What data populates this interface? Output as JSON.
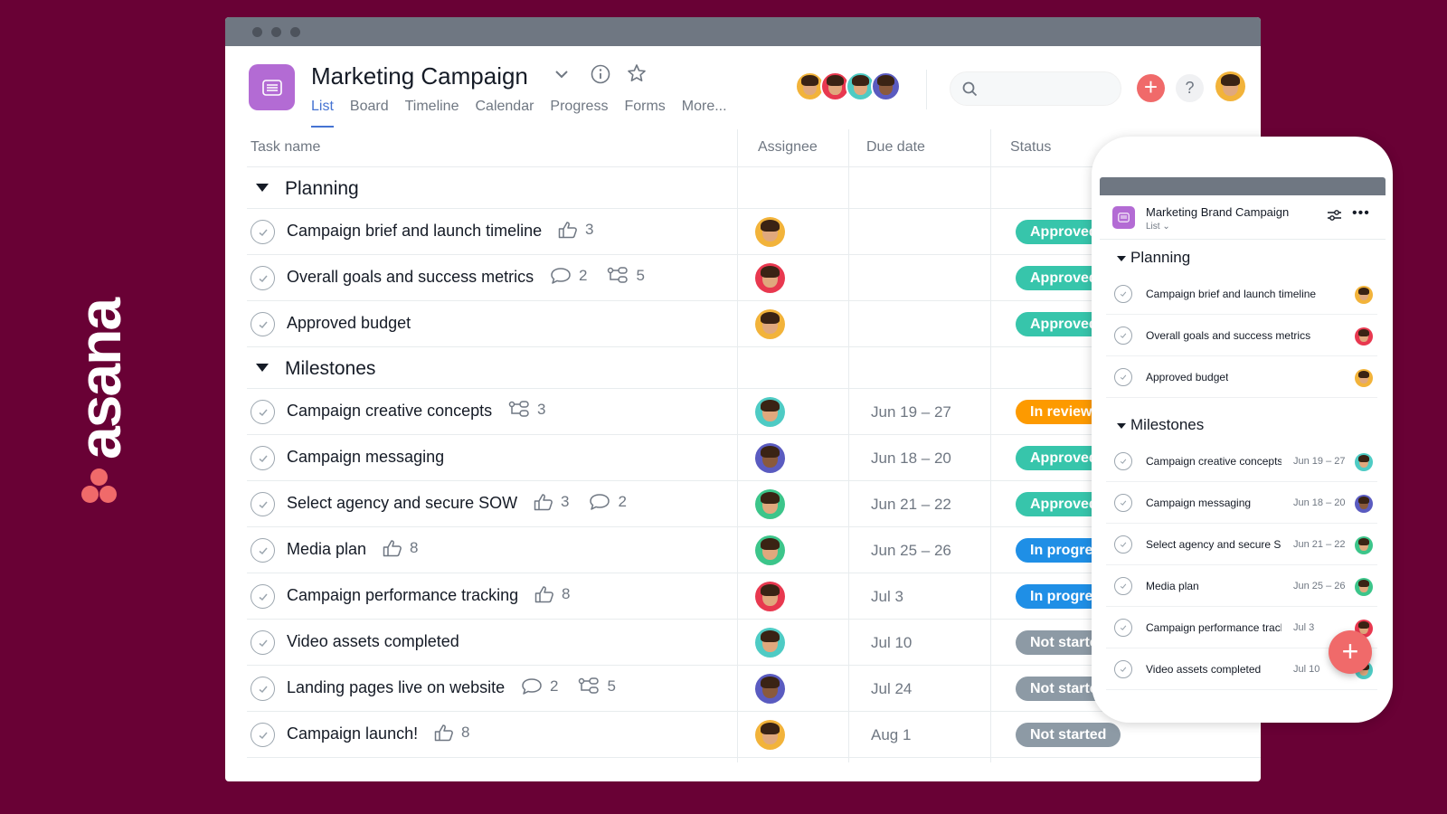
{
  "brand": {
    "logo_text": "asana",
    "accent": "#f06a6a",
    "background": "#690135"
  },
  "project": {
    "title": "Marketing Campaign",
    "tabs": [
      "List",
      "Board",
      "Timeline",
      "Calendar",
      "Progress",
      "Forms",
      "More..."
    ],
    "active_tab": "List",
    "search_placeholder": ""
  },
  "table": {
    "columns": {
      "task": "Task name",
      "assignee": "Assignee",
      "due": "Due date",
      "status": "Status"
    },
    "sections": [
      {
        "title": "Planning",
        "tasks": [
          {
            "name": "Campaign brief and launch timeline",
            "likes": "3",
            "comments": "",
            "subtasks": "",
            "avatar": "#f2b33a",
            "due": "",
            "status": "Approved",
            "status_color": "#37c5ab"
          },
          {
            "name": "Overall goals and success metrics",
            "likes": "",
            "comments": "2",
            "subtasks": "5",
            "avatar": "#e8384f",
            "due": "",
            "status": "Approved",
            "status_color": "#37c5ab"
          },
          {
            "name": "Approved budget",
            "likes": "",
            "comments": "",
            "subtasks": "",
            "avatar": "#f2b33a",
            "due": "",
            "status": "Approved",
            "status_color": "#37c5ab"
          }
        ]
      },
      {
        "title": "Milestones",
        "tasks": [
          {
            "name": "Campaign creative concepts",
            "likes": "",
            "comments": "",
            "subtasks": "3",
            "avatar": "#4ecbc4",
            "due": "Jun 19 – 27",
            "status": "In review",
            "status_color": "#fd9a00"
          },
          {
            "name": "Campaign messaging",
            "likes": "",
            "comments": "",
            "subtasks": "",
            "avatar": "#5a5bc0",
            "due": "Jun 18 – 20",
            "status": "Approved",
            "status_color": "#37c5ab"
          },
          {
            "name": "Select agency and secure SOW",
            "likes": "3",
            "comments": "2",
            "subtasks": "",
            "avatar": "#3cc58a",
            "due": "Jun 21 – 22",
            "status": "Approved",
            "status_color": "#37c5ab"
          },
          {
            "name": "Media plan",
            "likes": "8",
            "comments": "",
            "subtasks": "",
            "avatar": "#3cc58a",
            "due": "Jun 25 – 26",
            "status": "In progress",
            "status_color": "#1f8fe6"
          },
          {
            "name": "Campaign performance tracking",
            "likes": "8",
            "comments": "",
            "subtasks": "",
            "avatar": "#e8384f",
            "due": "Jul 3",
            "status": "In progress",
            "status_color": "#1f8fe6"
          },
          {
            "name": "Video assets completed",
            "likes": "",
            "comments": "",
            "subtasks": "",
            "avatar": "#4ecbc4",
            "due": "Jul 10",
            "status": "Not started",
            "status_color": "#8d9aa5"
          },
          {
            "name": "Landing pages live on website",
            "likes": "",
            "comments": "2",
            "subtasks": "5",
            "avatar": "#5a5bc0",
            "due": "Jul 24",
            "status": "Not started",
            "status_color": "#8d9aa5"
          },
          {
            "name": "Campaign launch!",
            "likes": "8",
            "comments": "",
            "subtasks": "",
            "avatar": "#f2b33a",
            "due": "Aug 1",
            "status": "Not started",
            "status_color": "#8d9aa5"
          }
        ]
      }
    ]
  },
  "mobile": {
    "title": "Marketing Brand Campaign",
    "view": "List",
    "sections": [
      {
        "title": "Planning",
        "tasks": [
          {
            "name": "Campaign brief and launch timeline",
            "due": "",
            "avatar": "#f2b33a"
          },
          {
            "name": "Overall goals and success metrics",
            "due": "",
            "avatar": "#e8384f"
          },
          {
            "name": "Approved budget",
            "due": "",
            "avatar": "#f2b33a"
          }
        ]
      },
      {
        "title": "Milestones",
        "tasks": [
          {
            "name": "Campaign creative concepts",
            "due": "Jun 19 – 27",
            "avatar": "#4ecbc4"
          },
          {
            "name": "Campaign messaging",
            "due": "Jun 18 – 20",
            "avatar": "#5a5bc0"
          },
          {
            "name": "Select agency and secure SOW",
            "due": "Jun 21 – 22",
            "avatar": "#3cc58a"
          },
          {
            "name": "Media plan",
            "due": "Jun 25 – 26",
            "avatar": "#3cc58a"
          },
          {
            "name": "Campaign performance tracking",
            "due": "Jul 3",
            "avatar": "#e8384f"
          },
          {
            "name": "Video assets completed",
            "due": "Jul 10",
            "avatar": "#4ecbc4"
          }
        ]
      }
    ]
  }
}
